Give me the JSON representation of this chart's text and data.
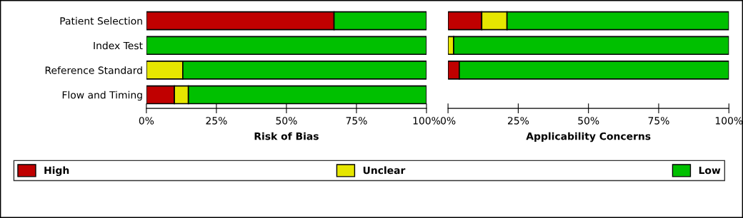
{
  "chart_data": [
    {
      "type": "bar",
      "orientation": "horizontal",
      "stacked": true,
      "xlabel": "Risk of Bias",
      "categories": [
        "Patient Selection",
        "Index Test",
        "Reference Standard",
        "Flow and Timing"
      ],
      "xlim": [
        0,
        100
      ],
      "xticks": [
        {
          "value": 0,
          "label": "0%"
        },
        {
          "value": 25,
          "label": "25%"
        },
        {
          "value": 50,
          "label": "50%"
        },
        {
          "value": 75,
          "label": "75%"
        },
        {
          "value": 100,
          "label": "100%"
        }
      ],
      "legend": "bottom",
      "series": [
        {
          "name": "High",
          "color": "#c00000",
          "values": [
            67,
            0,
            0,
            10
          ]
        },
        {
          "name": "Unclear",
          "color": "#e6e600",
          "values": [
            0,
            0,
            13,
            5
          ]
        },
        {
          "name": "Low",
          "color": "#00c000",
          "values": [
            33,
            100,
            87,
            85
          ]
        }
      ]
    },
    {
      "type": "bar",
      "orientation": "horizontal",
      "stacked": true,
      "xlabel": "Applicability Concerns",
      "categories": [
        null,
        null,
        null,
        null
      ],
      "xlim": [
        0,
        100
      ],
      "xticks": [
        {
          "value": 0,
          "label": "0%"
        },
        {
          "value": 25,
          "label": "25%"
        },
        {
          "value": 50,
          "label": "50%"
        },
        {
          "value": 75,
          "label": "75%"
        },
        {
          "value": 100,
          "label": "100%"
        }
      ],
      "tick_labels": "x",
      "series": [
        {
          "color": "#c00000",
          "values": [
            12,
            0,
            4,
            null
          ]
        },
        {
          "color": "#e6e600",
          "values": [
            9,
            2,
            0,
            null
          ]
        },
        {
          "color": "#00c000",
          "values": [
            79,
            98,
            96,
            null
          ]
        }
      ]
    }
  ]
}
